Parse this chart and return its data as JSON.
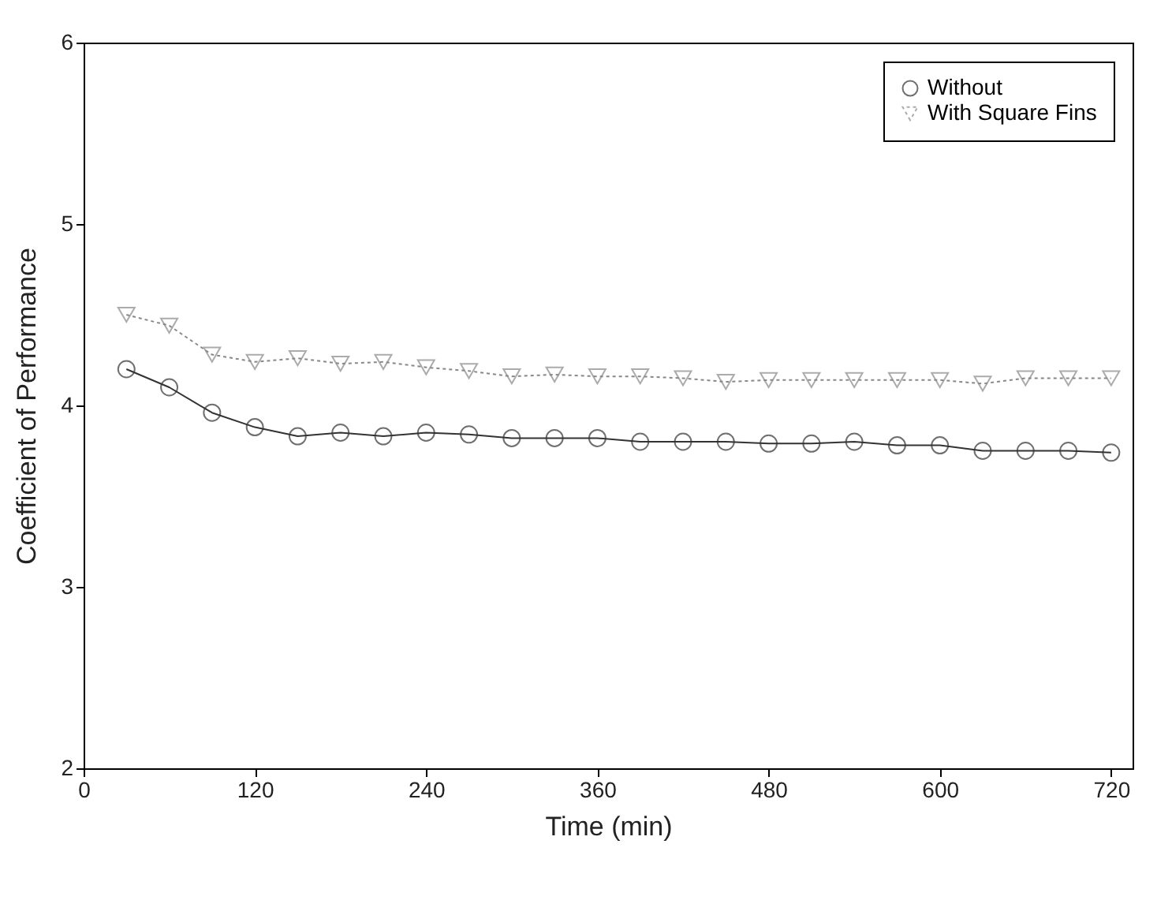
{
  "chart_data": {
    "type": "line",
    "xlabel": "Time (min)",
    "ylabel": "Coefficient of Performance",
    "x": [
      30,
      60,
      90,
      120,
      150,
      180,
      210,
      240,
      270,
      300,
      330,
      360,
      390,
      420,
      450,
      480,
      510,
      540,
      570,
      600,
      630,
      660,
      690,
      720
    ],
    "series": [
      {
        "name": "Without",
        "color": "#333333",
        "marker": "circle",
        "line_style": "solid",
        "values": [
          4.2,
          4.1,
          3.96,
          3.88,
          3.83,
          3.85,
          3.83,
          3.85,
          3.84,
          3.82,
          3.82,
          3.82,
          3.8,
          3.8,
          3.8,
          3.79,
          3.79,
          3.8,
          3.78,
          3.78,
          3.75,
          3.75,
          3.75,
          3.74
        ]
      },
      {
        "name": "With Square Fins",
        "color": "#888888",
        "marker": "triangle",
        "line_style": "dotted",
        "values": [
          4.5,
          4.44,
          4.28,
          4.24,
          4.26,
          4.23,
          4.24,
          4.21,
          4.19,
          4.16,
          4.17,
          4.16,
          4.16,
          4.15,
          4.13,
          4.14,
          4.14,
          4.14,
          4.14,
          4.14,
          4.12,
          4.15,
          4.15,
          4.15
        ]
      }
    ],
    "xlim": [
      0,
      735
    ],
    "xticks": [
      0,
      120,
      240,
      360,
      480,
      600,
      720
    ],
    "ylim": [
      2,
      6
    ],
    "yticks": [
      2,
      3,
      4,
      5,
      6
    ],
    "grid": false,
    "legend": "top right"
  }
}
